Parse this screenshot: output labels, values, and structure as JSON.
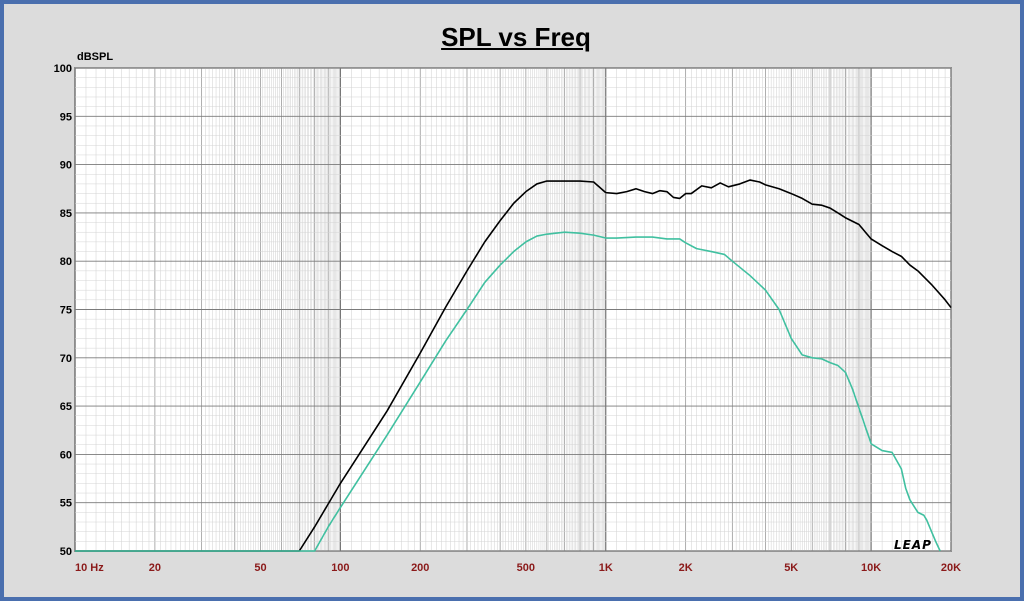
{
  "title": "SPL vs Freq",
  "watermark": "LEAP",
  "chart_data": {
    "type": "line",
    "title": "SPL vs Freq",
    "ylabel": "dBSPL",
    "xlabel": "",
    "xscale": "log",
    "xlim": [
      10,
      20000
    ],
    "ylim": [
      50,
      100
    ],
    "grid": true,
    "y_ticks": [
      "50",
      "55",
      "60",
      "65",
      "70",
      "75",
      "80",
      "85",
      "90",
      "95",
      "100"
    ],
    "x_ticks": [
      {
        "value": 10,
        "label": "10  Hz"
      },
      {
        "value": 20,
        "label": "20"
      },
      {
        "value": 50,
        "label": "50"
      },
      {
        "value": 100,
        "label": "100"
      },
      {
        "value": 200,
        "label": "200"
      },
      {
        "value": 500,
        "label": "500"
      },
      {
        "value": 1000,
        "label": "1K"
      },
      {
        "value": 2000,
        "label": "2K"
      },
      {
        "value": 5000,
        "label": "5K"
      },
      {
        "value": 10000,
        "label": "10K"
      },
      {
        "value": 20000,
        "label": "20K"
      }
    ],
    "series": [
      {
        "color": "#000000",
        "points": [
          [
            10,
            50
          ],
          [
            70,
            50
          ],
          [
            80,
            52.5
          ],
          [
            100,
            57
          ],
          [
            150,
            64.5
          ],
          [
            200,
            70.5
          ],
          [
            250,
            75.3
          ],
          [
            300,
            79
          ],
          [
            350,
            82
          ],
          [
            400,
            84.2
          ],
          [
            450,
            86
          ],
          [
            500,
            87.2
          ],
          [
            550,
            88
          ],
          [
            600,
            88.3
          ],
          [
            700,
            88.3
          ],
          [
            800,
            88.3
          ],
          [
            900,
            88.2
          ],
          [
            1000,
            87.1
          ],
          [
            1100,
            87
          ],
          [
            1200,
            87.2
          ],
          [
            1300,
            87.5
          ],
          [
            1400,
            87.2
          ],
          [
            1500,
            87
          ],
          [
            1600,
            87.3
          ],
          [
            1700,
            87.2
          ],
          [
            1800,
            86.6
          ],
          [
            1900,
            86.5
          ],
          [
            2000,
            87
          ],
          [
            2100,
            87
          ],
          [
            2300,
            87.8
          ],
          [
            2500,
            87.6
          ],
          [
            2700,
            88.1
          ],
          [
            2900,
            87.7
          ],
          [
            3200,
            88
          ],
          [
            3500,
            88.4
          ],
          [
            3800,
            88.2
          ],
          [
            4000,
            87.9
          ],
          [
            4500,
            87.5
          ],
          [
            5000,
            87
          ],
          [
            5500,
            86.5
          ],
          [
            6000,
            85.9
          ],
          [
            6500,
            85.8
          ],
          [
            7000,
            85.5
          ],
          [
            7500,
            85
          ],
          [
            8000,
            84.5
          ],
          [
            9000,
            83.8
          ],
          [
            10000,
            82.3
          ],
          [
            11000,
            81.6
          ],
          [
            12000,
            81
          ],
          [
            13000,
            80.5
          ],
          [
            14000,
            79.6
          ],
          [
            15000,
            79
          ],
          [
            17000,
            77.5
          ],
          [
            19000,
            76
          ],
          [
            20000,
            75.2
          ]
        ]
      },
      {
        "color": "#40c0a0",
        "points": [
          [
            10,
            50
          ],
          [
            80,
            50
          ],
          [
            90,
            52.5
          ],
          [
            100,
            54.5
          ],
          [
            150,
            62
          ],
          [
            200,
            67.5
          ],
          [
            250,
            71.8
          ],
          [
            300,
            75
          ],
          [
            350,
            77.8
          ],
          [
            400,
            79.6
          ],
          [
            450,
            81
          ],
          [
            500,
            82
          ],
          [
            550,
            82.6
          ],
          [
            600,
            82.8
          ],
          [
            700,
            83
          ],
          [
            800,
            82.9
          ],
          [
            900,
            82.7
          ],
          [
            1000,
            82.4
          ],
          [
            1100,
            82.4
          ],
          [
            1300,
            82.5
          ],
          [
            1500,
            82.5
          ],
          [
            1700,
            82.3
          ],
          [
            1900,
            82.3
          ],
          [
            2000,
            81.9
          ],
          [
            2200,
            81.3
          ],
          [
            2500,
            81
          ],
          [
            2800,
            80.7
          ],
          [
            3000,
            80
          ],
          [
            3500,
            78.5
          ],
          [
            4000,
            77
          ],
          [
            4500,
            75
          ],
          [
            5000,
            72
          ],
          [
            5500,
            70.3
          ],
          [
            6000,
            70
          ],
          [
            6500,
            69.9
          ],
          [
            7000,
            69.5
          ],
          [
            7500,
            69.2
          ],
          [
            8000,
            68.5
          ],
          [
            8500,
            66.8
          ],
          [
            9000,
            64.8
          ],
          [
            10000,
            61.1
          ],
          [
            11000,
            60.4
          ],
          [
            12000,
            60.2
          ],
          [
            13000,
            58.5
          ],
          [
            13500,
            56.5
          ],
          [
            14000,
            55.3
          ],
          [
            15000,
            54
          ],
          [
            15800,
            53.7
          ],
          [
            16200,
            53.2
          ],
          [
            17500,
            51
          ],
          [
            18200,
            50
          ]
        ]
      }
    ]
  }
}
